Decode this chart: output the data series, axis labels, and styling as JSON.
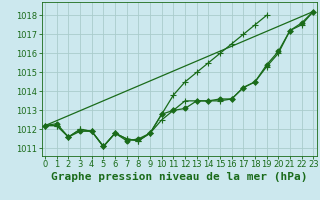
{
  "title": "Graphe pression niveau de la mer (hPa)",
  "bg_color": "#cce8ee",
  "grid_color": "#aacccc",
  "line_color": "#1a6b1a",
  "text_color": "#1a6b1a",
  "xlim": [
    -0.3,
    23.3
  ],
  "ylim": [
    1010.6,
    1018.7
  ],
  "yticks": [
    1011,
    1012,
    1013,
    1014,
    1015,
    1016,
    1017,
    1018
  ],
  "xticks": [
    0,
    1,
    2,
    3,
    4,
    5,
    6,
    7,
    8,
    9,
    10,
    11,
    12,
    13,
    14,
    15,
    16,
    17,
    18,
    19,
    20,
    21,
    22,
    23
  ],
  "series_with_markers": [
    [
      1012.2,
      1012.2,
      1011.6,
      1012.0,
      1011.9,
      1011.1,
      1011.8,
      1011.5,
      1011.4,
      1011.8,
      1012.5,
      1013.0,
      1013.5,
      1013.5,
      1013.5,
      1013.5,
      1013.6,
      1014.2,
      1014.5,
      1015.3,
      1016.0,
      1017.2,
      1017.5,
      1018.2
    ],
    [
      1012.2,
      1012.2,
      1011.6,
      1012.0,
      1011.9,
      1011.1,
      1011.8,
      1011.5,
      1011.4,
      1011.8,
      1012.8,
      1013.8,
      1014.5,
      1015.0,
      1015.5,
      1016.0,
      1016.5,
      1017.0,
      1017.5,
      1018.0,
      null,
      null,
      null,
      null
    ]
  ],
  "series_plain": [
    [
      1012.2,
      1018.2
    ]
  ],
  "series_plain_x": [
    [
      0,
      23
    ]
  ],
  "series_with_small_markers": [
    [
      1012.2,
      1012.3,
      1011.6,
      1011.9,
      1011.9,
      1011.1,
      1011.8,
      1011.4,
      1011.5,
      1011.8,
      1012.8,
      1013.0,
      1013.1,
      1013.5,
      1013.5,
      1013.6,
      1013.6,
      1014.2,
      1014.5,
      1015.4,
      1016.1,
      1017.2,
      1017.6,
      1018.2
    ]
  ],
  "marker_cross": "+",
  "marker_diamond": "D",
  "markersize_cross": 4,
  "markersize_diamond": 2.5,
  "linewidth": 0.9,
  "title_fontsize": 8,
  "tick_fontsize": 6
}
